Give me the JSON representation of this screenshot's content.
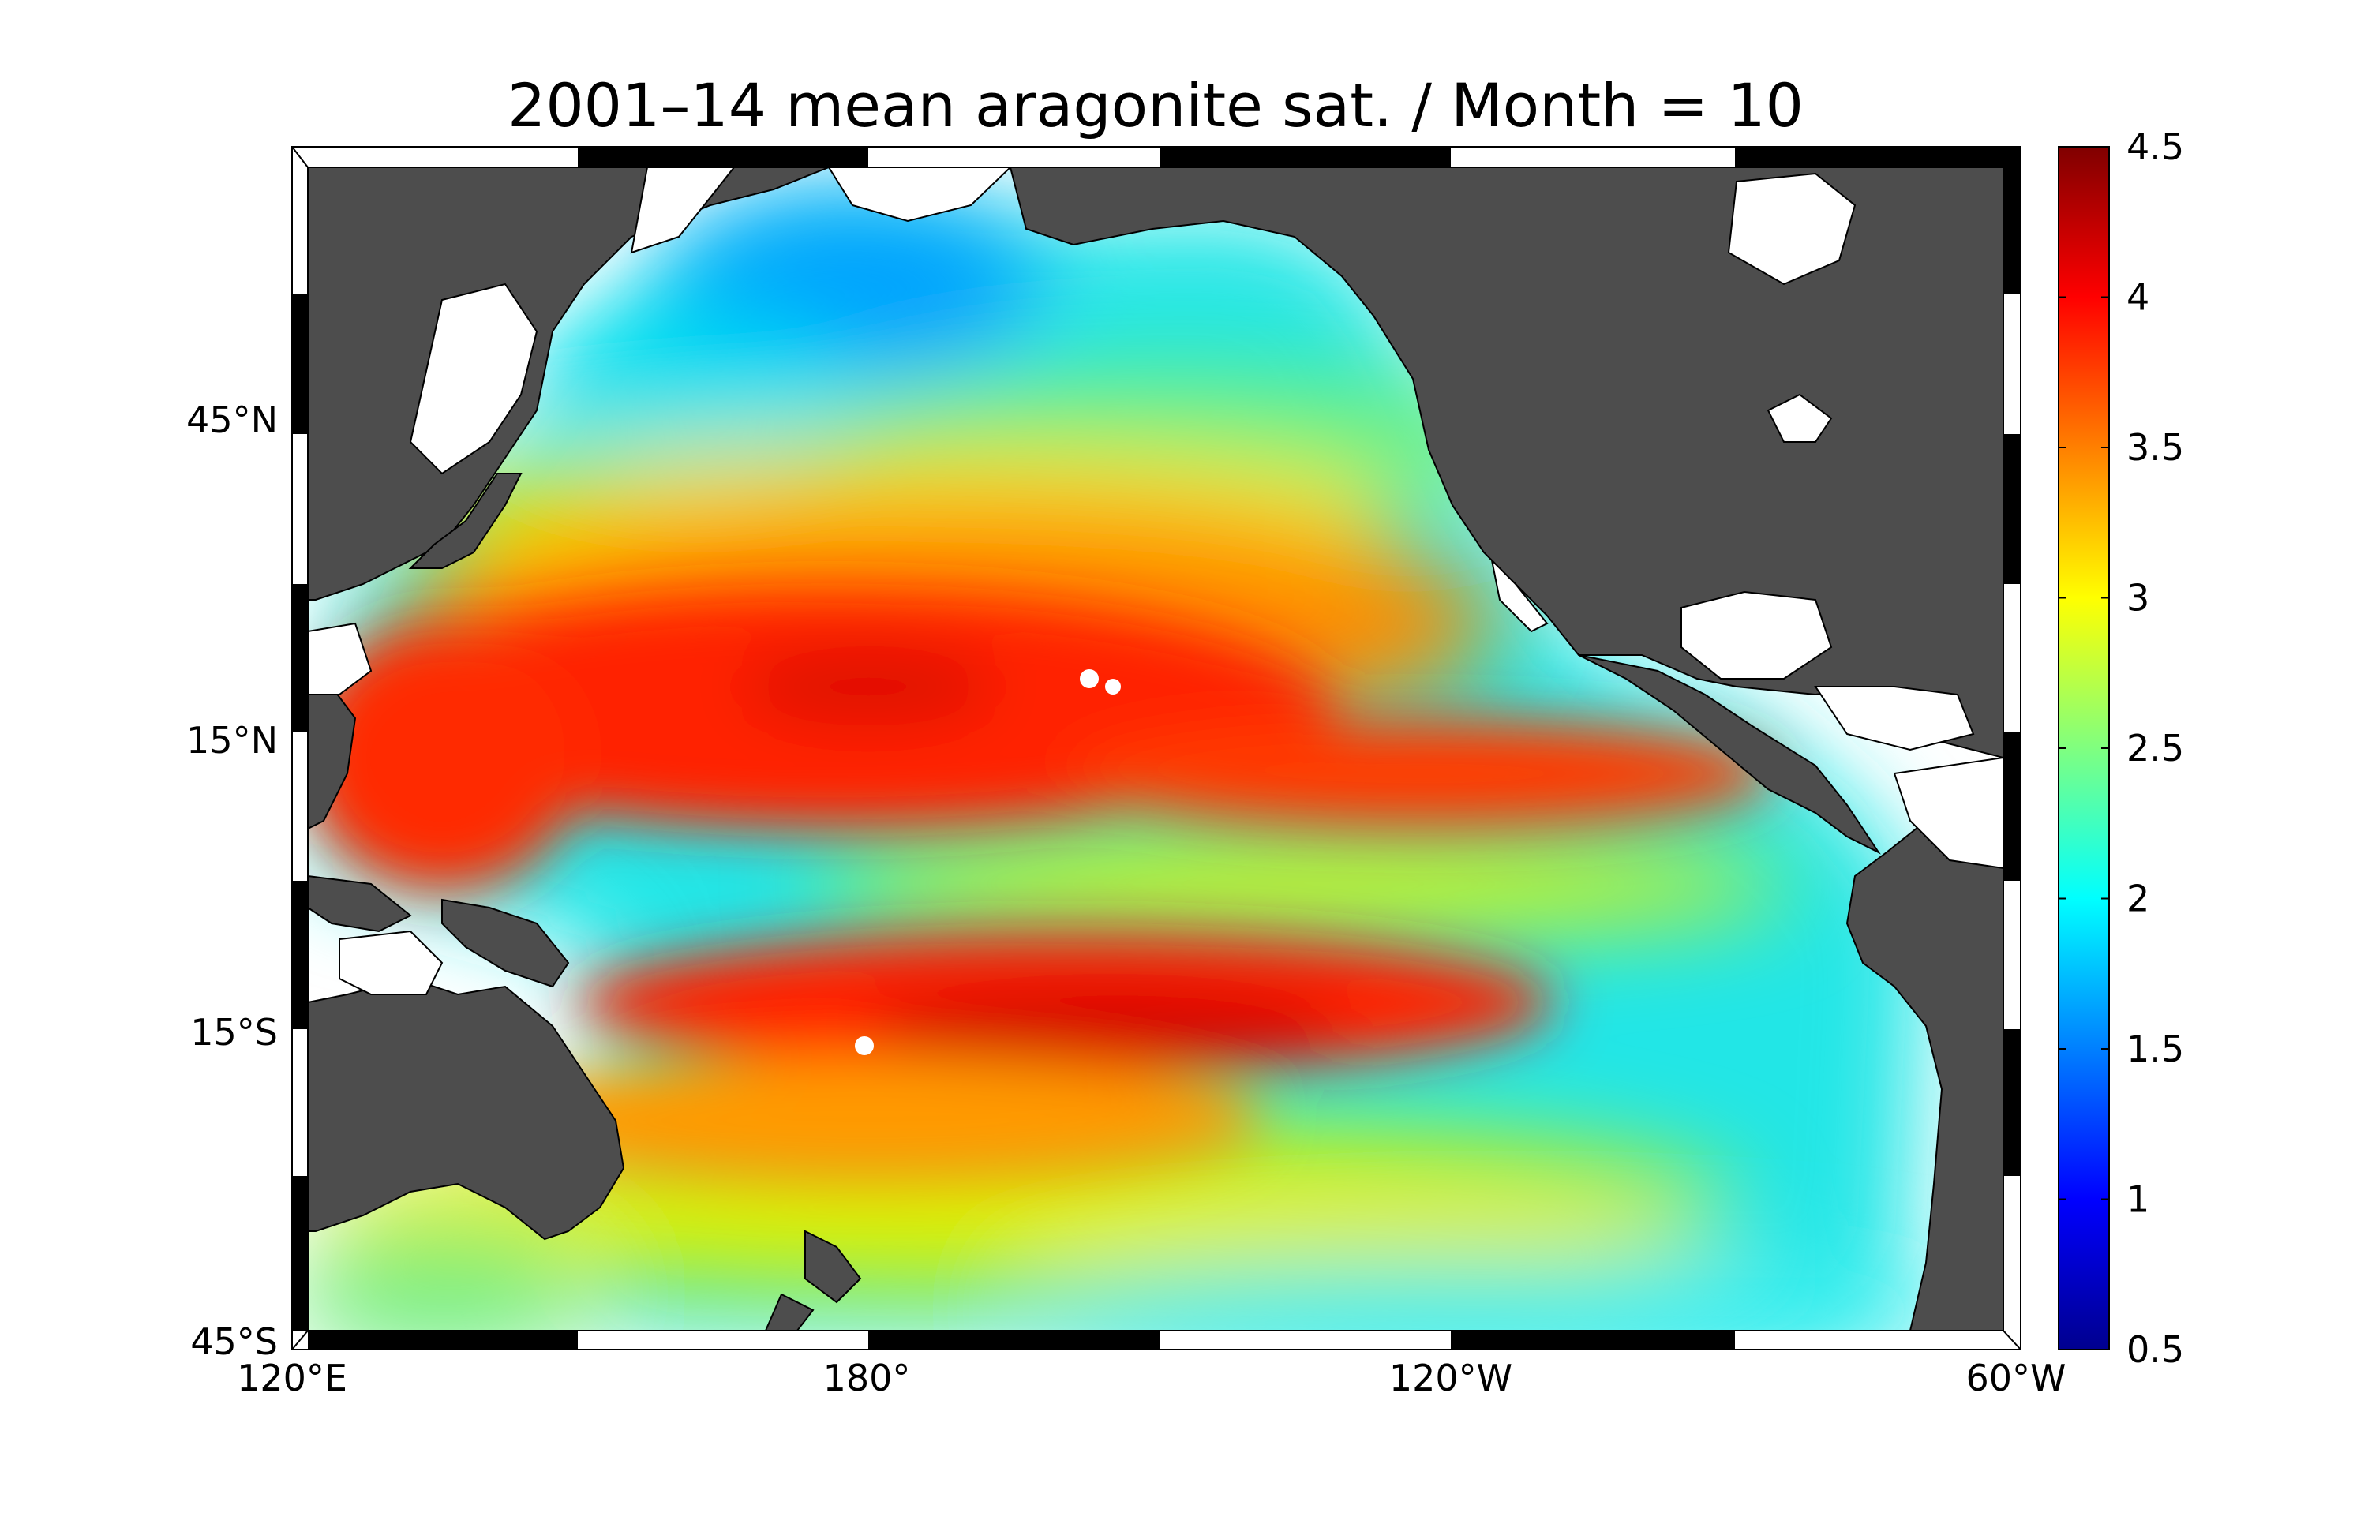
{
  "chart_data": {
    "type": "heatmap",
    "title": "2001–14 mean aragonite sat. / Month = 10",
    "x_ticks": [
      "120°E",
      "180°",
      "120°W",
      "60°W"
    ],
    "x_tick_values": [
      120,
      180,
      240,
      300
    ],
    "y_ticks": [
      "45°N",
      "15°N",
      "15°S",
      "45°S"
    ],
    "y_tick_values": [
      45,
      15,
      -15,
      -45
    ],
    "xlim": [
      120,
      300
    ],
    "ylim": [
      -45,
      70
    ],
    "colorbar": {
      "ticks": [
        "4.5",
        "4",
        "3.5",
        "3",
        "2.5",
        "2",
        "1.5",
        "1",
        "0.5"
      ],
      "tick_values": [
        4.5,
        4,
        3.5,
        3,
        2.5,
        2,
        1.5,
        1,
        0.5
      ],
      "range": [
        0.5,
        4.5
      ],
      "colormap": "jet"
    },
    "land_color": "#4d4d4d",
    "frame_color": "#000000"
  }
}
